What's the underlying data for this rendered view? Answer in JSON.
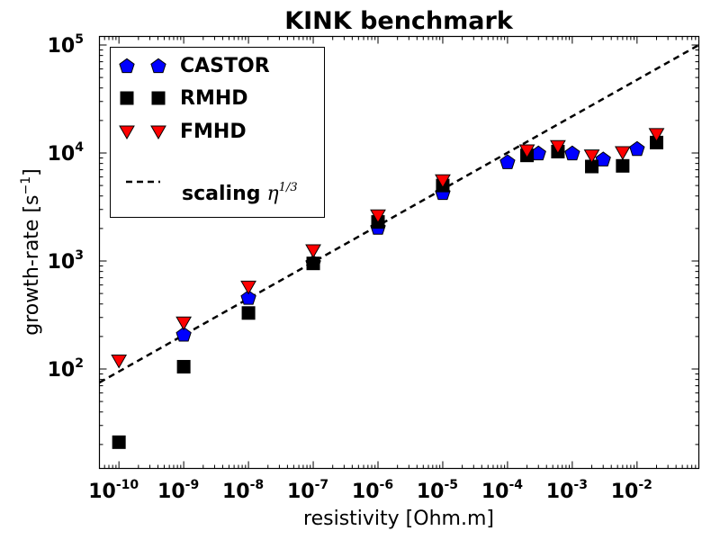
{
  "chart_data": {
    "type": "scatter",
    "title": "KINK benchmark",
    "xlabel": "resistivity [Ohm.m]",
    "ylabel_prefix": "growth-rate [s",
    "ylabel_exp": "−1",
    "ylabel_suffix": "]",
    "x_scale": "log",
    "y_scale": "log",
    "xlim": [
      5e-11,
      0.09
    ],
    "ylim": [
      12,
      120000
    ],
    "x_ticks": [
      {
        "base": "10",
        "exp": "-10",
        "value": 1e-10
      },
      {
        "base": "10",
        "exp": "-9",
        "value": 1e-09
      },
      {
        "base": "10",
        "exp": "-8",
        "value": 1e-08
      },
      {
        "base": "10",
        "exp": "-7",
        "value": 1e-07
      },
      {
        "base": "10",
        "exp": "-6",
        "value": 1e-06
      },
      {
        "base": "10",
        "exp": "-5",
        "value": 1e-05
      },
      {
        "base": "10",
        "exp": "-4",
        "value": 0.0001
      },
      {
        "base": "10",
        "exp": "-3",
        "value": 0.001
      },
      {
        "base": "10",
        "exp": "-2",
        "value": 0.01
      }
    ],
    "y_ticks": [
      {
        "base": "10",
        "exp": "2",
        "value": 100
      },
      {
        "base": "10",
        "exp": "3",
        "value": 1000
      },
      {
        "base": "10",
        "exp": "4",
        "value": 10000
      },
      {
        "base": "10",
        "exp": "5",
        "value": 100000
      }
    ],
    "legend_position": "top-left",
    "series": [
      {
        "name": "CASTOR",
        "marker": "pentagon",
        "color": "#0000ff",
        "points": [
          [
            1e-09,
            210
          ],
          [
            1e-08,
            460
          ],
          [
            1e-07,
            970
          ],
          [
            1e-06,
            2050
          ],
          [
            1e-05,
            4300
          ],
          [
            0.0001,
            8300
          ],
          [
            0.0003,
            10000
          ],
          [
            0.001,
            10000
          ],
          [
            0.003,
            8800
          ],
          [
            0.01,
            11000
          ]
        ]
      },
      {
        "name": "RMHD",
        "marker": "square",
        "color": "#000000",
        "points": [
          [
            1e-10,
            21
          ],
          [
            1e-09,
            105
          ],
          [
            1e-08,
            330
          ],
          [
            1e-07,
            950
          ],
          [
            1e-06,
            2300
          ],
          [
            1e-05,
            5000
          ],
          [
            0.0002,
            9500
          ],
          [
            0.0006,
            10300
          ],
          [
            0.002,
            7500
          ],
          [
            0.006,
            7600
          ],
          [
            0.02,
            12500
          ]
        ]
      },
      {
        "name": "FMHD",
        "marker": "triangle-down",
        "color": "#ff0000",
        "points": [
          [
            1e-10,
            120
          ],
          [
            1e-09,
            270
          ],
          [
            1e-08,
            580
          ],
          [
            1e-07,
            1260
          ],
          [
            1e-06,
            2650
          ],
          [
            1e-05,
            5600
          ],
          [
            0.0002,
            10600
          ],
          [
            0.0006,
            11600
          ],
          [
            0.002,
            9500
          ],
          [
            0.006,
            10200
          ],
          [
            0.02,
            15000
          ]
        ]
      }
    ],
    "scaling_line": {
      "name_prefix": "scaling",
      "name_symbol": "η",
      "name_exp": "1/3",
      "style": "dashed",
      "color": "#000000",
      "points": [
        [
          5e-11,
          75
        ],
        [
          0.09,
          100000
        ]
      ]
    }
  }
}
